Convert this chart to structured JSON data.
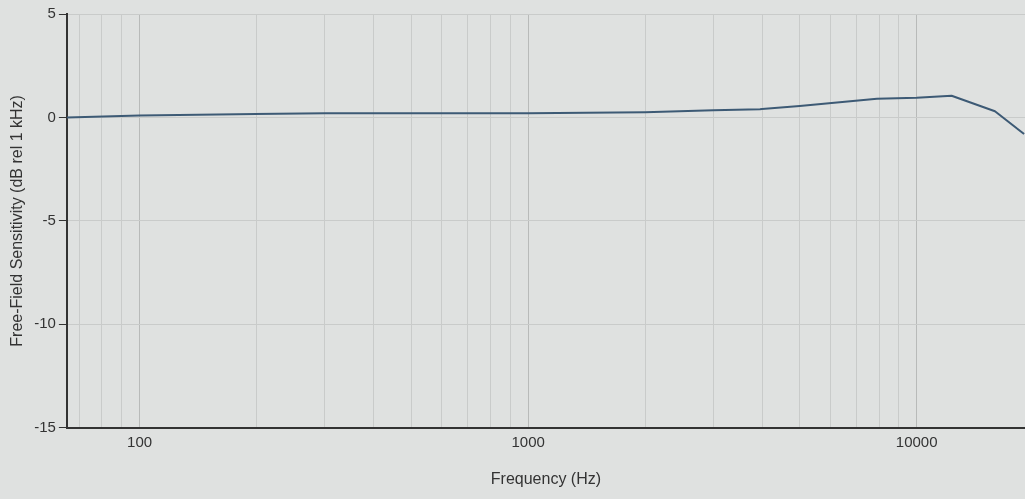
{
  "chart_data": {
    "type": "line",
    "xlabel": "Frequency (Hz)",
    "ylabel": "Free-Field Sensitivity (dB rel 1 kHz)",
    "x": [
      65,
      100,
      300,
      1000,
      2000,
      3000,
      3950,
      5000,
      7900,
      10000,
      12300,
      15900,
      18900
    ],
    "series": [
      {
        "color": "#3d5a75",
        "values": [
          0,
          0.1,
          0.2,
          0.2,
          0.25,
          0.35,
          0.4,
          0.55,
          0.9,
          0.95,
          1.05,
          0.3,
          -0.8
        ]
      }
    ],
    "log": "x",
    "xlim": [
      65,
      19000
    ],
    "ylim": [
      -15,
      5
    ],
    "xticks": [
      {
        "value": 70,
        "label": null
      },
      {
        "value": 80,
        "label": null
      },
      {
        "value": 90,
        "label": null
      },
      100,
      {
        "value": 200,
        "label": null
      },
      {
        "value": 300,
        "label": null
      },
      {
        "value": 400,
        "label": null
      },
      {
        "value": 500,
        "label": null
      },
      {
        "value": 600,
        "label": null
      },
      {
        "value": 700,
        "label": null
      },
      {
        "value": 800,
        "label": null
      },
      {
        "value": 900,
        "label": null
      },
      1000,
      {
        "value": 2000,
        "label": null
      },
      {
        "value": 3000,
        "label": null
      },
      {
        "value": 4000,
        "label": null
      },
      {
        "value": 5000,
        "label": null
      },
      {
        "value": 6000,
        "label": null
      },
      {
        "value": 7000,
        "label": null
      },
      {
        "value": 8000,
        "label": null
      },
      {
        "value": 9000,
        "label": null
      },
      10000
    ],
    "yticks": [
      -15,
      -10,
      -5,
      0,
      5
    ],
    "grid": true,
    "legend": false,
    "marker": "none",
    "line_style": "solid"
  }
}
